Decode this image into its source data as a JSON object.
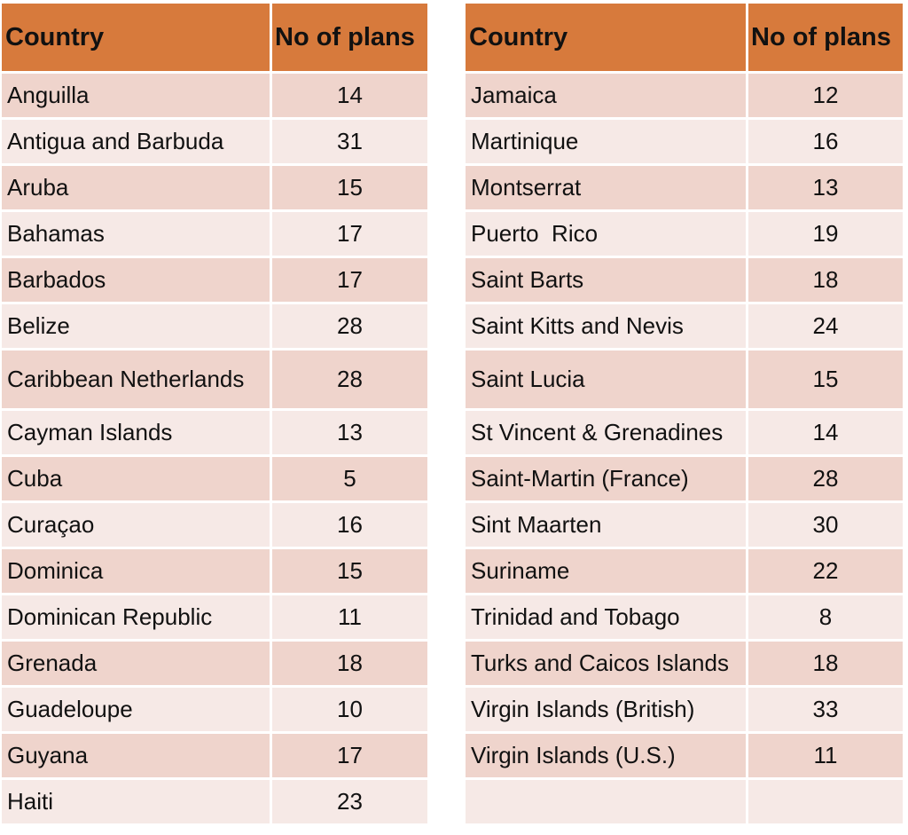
{
  "headers": {
    "country": "Country",
    "plans": "No of plans"
  },
  "colors": {
    "header": "#d77a3c",
    "row_dark": "#efd4cc",
    "row_light": "#f6e9e6"
  },
  "left_rows": [
    {
      "country": "Anguilla",
      "plans": "14"
    },
    {
      "country": "Antigua and Barbuda",
      "plans": "31"
    },
    {
      "country": "Aruba",
      "plans": "15"
    },
    {
      "country": "Bahamas",
      "plans": "17"
    },
    {
      "country": "Barbados",
      "plans": "17"
    },
    {
      "country": "Belize",
      "plans": "28"
    },
    {
      "country": "Caribbean Netherlands",
      "plans": "28"
    },
    {
      "country": "Cayman Islands",
      "plans": "13"
    },
    {
      "country": "Cuba",
      "plans": "5"
    },
    {
      "country": "Curaçao",
      "plans": "16"
    },
    {
      "country": "Dominica",
      "plans": "15"
    },
    {
      "country": "Dominican Republic",
      "plans": "11"
    },
    {
      "country": "Grenada",
      "plans": "18"
    },
    {
      "country": "Guadeloupe",
      "plans": "10"
    },
    {
      "country": "Guyana",
      "plans": "17"
    },
    {
      "country": "Haiti",
      "plans": "23"
    }
  ],
  "right_rows": [
    {
      "country": "Jamaica",
      "plans": "12"
    },
    {
      "country": "Martinique",
      "plans": "16"
    },
    {
      "country": "Montserrat",
      "plans": "13"
    },
    {
      "country": "Puerto  Rico",
      "plans": "19"
    },
    {
      "country": "Saint Barts",
      "plans": "18"
    },
    {
      "country": "Saint Kitts and Nevis",
      "plans": "24"
    },
    {
      "country": "Saint Lucia",
      "plans": "15"
    },
    {
      "country": "St Vincent & Grenadines",
      "plans": "14"
    },
    {
      "country": "Saint-Martin (France)",
      "plans": "28"
    },
    {
      "country": "Sint Maarten",
      "plans": "30"
    },
    {
      "country": "Suriname",
      "plans": "22"
    },
    {
      "country": "Trinidad and Tobago",
      "plans": "8"
    },
    {
      "country": "Turks and Caicos Islands",
      "plans": "18"
    },
    {
      "country": "Virgin Islands (British)",
      "plans": "33"
    },
    {
      "country": "Virgin Islands (U.S.)",
      "plans": "11"
    },
    {
      "country": "",
      "plans": ""
    }
  ]
}
